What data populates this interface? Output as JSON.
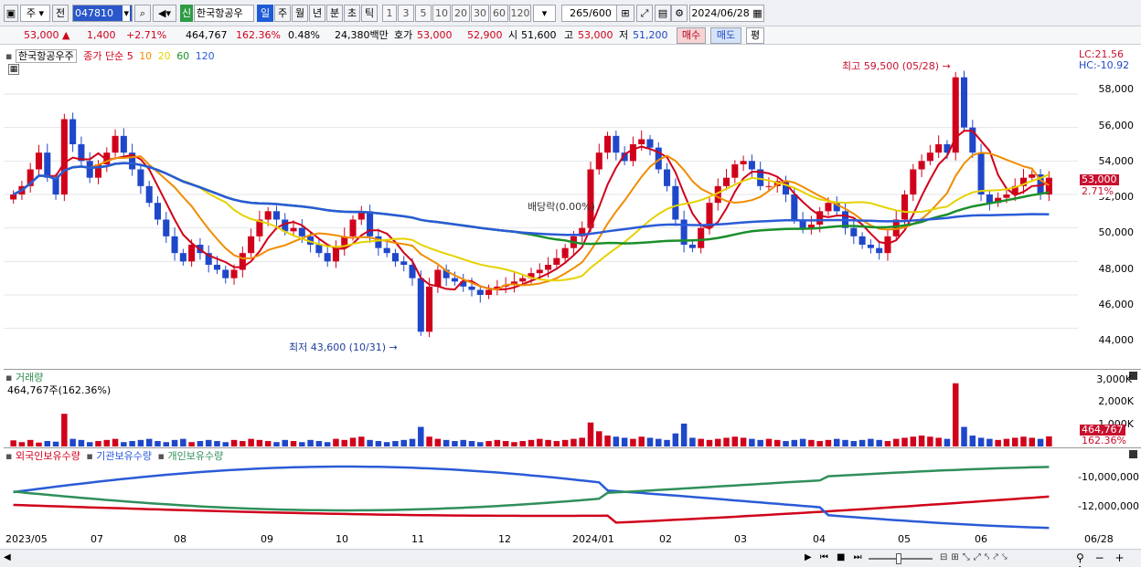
{
  "toolbar": {
    "market_select": "주",
    "prev_button": "전",
    "stock_code": "047810",
    "new_badge": "신",
    "stock_name": "한국항공우",
    "periods": [
      "일",
      "주",
      "월",
      "년",
      "분",
      "초",
      "틱"
    ],
    "active_period": "일",
    "intervals": [
      "1",
      "3",
      "5",
      "10",
      "20",
      "30",
      "60",
      "120"
    ],
    "count_current": "265",
    "count_total": "/600",
    "date_value": "2024/06/28"
  },
  "quote": {
    "price": "53,000",
    "change": "1,400",
    "change_pct": "+2.71%",
    "volume": "464,767",
    "volume_ratio": "162.36%",
    "turnover": "0.48%",
    "amount": "24,380백만",
    "bidask_label": "호가",
    "ask": "53,000",
    "bid": "52,900",
    "open_label": "시",
    "open": "51,600",
    "high_label": "고",
    "high": "53,000",
    "low_label": "저",
    "low": "51,200",
    "buy_button": "매수",
    "sell_button": "매도",
    "extra_button": "평"
  },
  "price_pane": {
    "stock_label": "한국항공우주",
    "series_label": "종가 단순",
    "ma_labels": [
      {
        "label": "5",
        "color": "#d0021b"
      },
      {
        "label": "10",
        "color": "#f08c00"
      },
      {
        "label": "20",
        "color": "#e6d200"
      },
      {
        "label": "60",
        "color": "#1b8f2a"
      },
      {
        "label": "120",
        "color": "#2a5bd7"
      }
    ],
    "lc_label": "LC:21.56",
    "hc_label": "HC:-10.92",
    "high_note": "최고 59,500 (05/28)",
    "low_note": "최저 43,600 (10/31)",
    "dividend_note": "배당락(0.00%)",
    "y_ticks": [
      "58,000",
      "56,000",
      "54,000",
      "52,000",
      "50,000",
      "48,000",
      "46,000",
      "44,000"
    ],
    "price_badge": "53,000",
    "pct_badge": "2.71%"
  },
  "volume_pane": {
    "title": "거래량",
    "value_label": "464,767주(162.36%)",
    "y_ticks": [
      "3,000K",
      "2,000K",
      "1,000K"
    ],
    "value_badge": "464,767",
    "pct_badge": "162.36%"
  },
  "holdings_pane": {
    "foreign_label": "외국인보유수량",
    "institution_label": "기관보유수량",
    "individual_label": "개인보유수량",
    "y_ticks": [
      "-10,000,000",
      "-12,000,000"
    ]
  },
  "x_labels": [
    "2023/05",
    "07",
    "08",
    "09",
    "10",
    "11",
    "12",
    "2024/01",
    "02",
    "03",
    "04",
    "05",
    "06",
    "06/28"
  ],
  "chart_data": {
    "type": "candlestick",
    "x_range": [
      "2023/05",
      "2024/06/28"
    ],
    "y_range": [
      43000,
      59800
    ],
    "closes": [
      52000,
      52500,
      53500,
      54500,
      53000,
      52000,
      56500,
      55000,
      54000,
      53000,
      53800,
      54500,
      55500,
      54500,
      53500,
      52500,
      51500,
      50500,
      49500,
      48500,
      48000,
      49000,
      48500,
      47800,
      47500,
      47000,
      47500,
      48500,
      49500,
      50500,
      51000,
      50500,
      49800,
      50000,
      49500,
      49000,
      48500,
      48000,
      48800,
      49500,
      50500,
      51000,
      49500,
      48800,
      48500,
      48000,
      47800,
      47000,
      43800,
      46500,
      47500,
      47000,
      46800,
      46500,
      46300,
      46000,
      46300,
      46500,
      46600,
      46800,
      47000,
      47300,
      47500,
      47800,
      48200,
      48800,
      49500,
      50000,
      53500,
      54500,
      55500,
      54500,
      54000,
      55000,
      55300,
      54800,
      53500,
      52500,
      50500,
      49000,
      48800,
      50000,
      51500,
      52500,
      53000,
      53800,
      54000,
      53500,
      52500,
      52500,
      52800,
      52000,
      50500,
      50000,
      50200,
      51000,
      51500,
      51000,
      50000,
      49500,
      49000,
      48800,
      48500,
      49500,
      50500,
      52000,
      53500,
      54000,
      54500,
      55000,
      54500,
      59000,
      56000,
      54500,
      52000,
      51500,
      51800,
      52000,
      52500,
      53000,
      53200,
      52000,
      53000
    ],
    "volume_k": [
      280,
      200,
      300,
      180,
      250,
      220,
      1500,
      350,
      300,
      200,
      250,
      300,
      350,
      200,
      250,
      300,
      350,
      250,
      200,
      300,
      350,
      200,
      250,
      300,
      250,
      200,
      300,
      250,
      350,
      300,
      250,
      200,
      300,
      250,
      200,
      300,
      250,
      200,
      350,
      300,
      400,
      450,
      300,
      250,
      200,
      250,
      300,
      350,
      900,
      450,
      350,
      300,
      250,
      300,
      250,
      200,
      250,
      300,
      250,
      200,
      250,
      300,
      350,
      300,
      250,
      300,
      350,
      400,
      1100,
      700,
      500,
      450,
      400,
      350,
      450,
      400,
      350,
      300,
      600,
      1050,
      400,
      350,
      300,
      350,
      400,
      450,
      400,
      350,
      300,
      350,
      300,
      250,
      300,
      350,
      300,
      250,
      300,
      350,
      300,
      250,
      300,
      350,
      300,
      250,
      350,
      400,
      450,
      500,
      450,
      400,
      350,
      2900,
      900,
      500,
      400,
      350,
      300,
      350,
      400,
      450,
      400,
      350,
      465
    ],
    "holdings_series": [
      {
        "name": "외국인보유수량",
        "color": "#d0021b"
      },
      {
        "name": "기관보유수량",
        "color": "#2a5bd7"
      },
      {
        "name": "개인보유수량",
        "color": "#2f8f5a"
      }
    ]
  }
}
